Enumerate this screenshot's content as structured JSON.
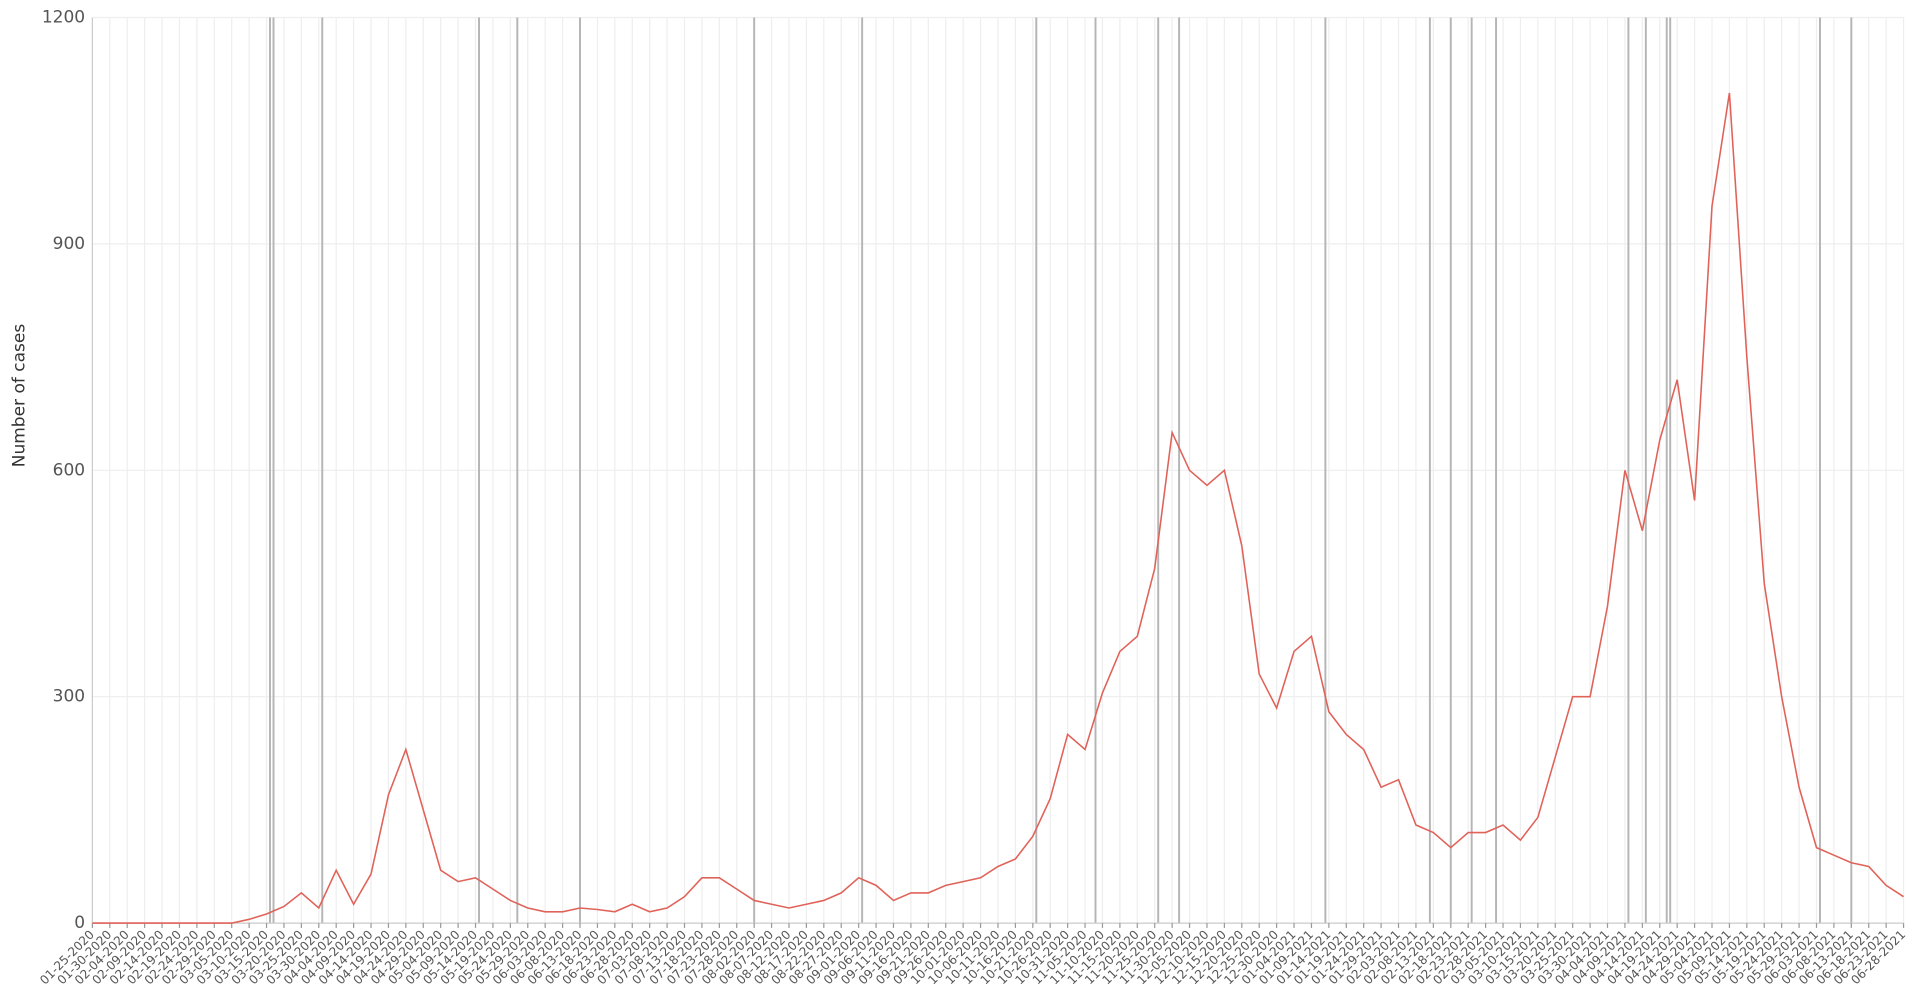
{
  "chart_data": {
    "type": "line",
    "y_label": "Number of cases",
    "categories": [
      "01-25-2020",
      "01-30-2020",
      "02-04-2020",
      "02-09-2020",
      "02-14-2020",
      "02-19-2020",
      "02-24-2020",
      "02-29-2020",
      "03-05-2020",
      "03-10-2020",
      "03-15-2020",
      "03-20-2020",
      "03-25-2020",
      "03-30-2020",
      "04-04-2020",
      "04-09-2020",
      "04-14-2020",
      "04-19-2020",
      "04-24-2020",
      "04-29-2020",
      "05-04-2020",
      "05-09-2020",
      "05-14-2020",
      "05-19-2020",
      "05-24-2020",
      "05-29-2020",
      "06-03-2020",
      "06-08-2020",
      "06-13-2020",
      "06-18-2020",
      "06-23-2020",
      "06-28-2020",
      "07-03-2020",
      "07-08-2020",
      "07-13-2020",
      "07-18-2020",
      "07-23-2020",
      "07-28-2020",
      "08-02-2020",
      "08-07-2020",
      "08-12-2020",
      "08-17-2020",
      "08-22-2020",
      "08-27-2020",
      "09-01-2020",
      "09-06-2020",
      "09-11-2020",
      "09-16-2020",
      "09-21-2020",
      "09-26-2020",
      "10-01-2020",
      "10-06-2020",
      "10-11-2020",
      "10-16-2020",
      "10-21-2020",
      "10-26-2020",
      "10-31-2020",
      "11-05-2020",
      "11-10-2020",
      "11-15-2020",
      "11-20-2020",
      "11-25-2020",
      "11-30-2020",
      "12-05-2020",
      "12-10-2020",
      "12-15-2020",
      "12-20-2020",
      "12-25-2020",
      "12-30-2020",
      "01-04-2021",
      "01-09-2021",
      "01-14-2021",
      "01-19-2021",
      "01-24-2021",
      "01-29-2021",
      "02-03-2021",
      "02-08-2021",
      "02-13-2021",
      "02-18-2021",
      "02-23-2021",
      "02-28-2021",
      "03-05-2021",
      "03-10-2021",
      "03-15-2021",
      "03-20-2021",
      "03-25-2021",
      "03-30-2021",
      "04-04-2021",
      "04-09-2021",
      "04-14-2021",
      "04-19-2021",
      "04-24-2021",
      "04-29-2021",
      "05-04-2021",
      "05-09-2021",
      "05-14-2021",
      "05-19-2021",
      "05-24-2021",
      "05-29-2021",
      "06-03-2021",
      "06-08-2021",
      "06-13-2021",
      "06-18-2021",
      "06-23-2021",
      "06-28-2021"
    ],
    "series": [
      {
        "color": "#e0635a",
        "values": [
          0,
          0,
          0,
          0,
          0,
          0,
          0,
          0,
          0,
          5,
          12,
          22,
          40,
          20,
          70,
          25,
          65,
          170,
          230,
          150,
          70,
          55,
          60,
          45,
          30,
          20,
          15,
          15,
          20,
          18,
          15,
          25,
          15,
          20,
          35,
          60,
          60,
          45,
          30,
          25,
          20,
          25,
          30,
          40,
          60,
          50,
          30,
          40,
          40,
          50,
          55,
          60,
          75,
          85,
          115,
          165,
          250,
          230,
          305,
          360,
          380,
          470,
          650,
          600,
          580,
          600,
          500,
          330,
          285,
          360,
          380,
          280,
          250,
          230,
          180,
          190,
          130,
          120,
          100,
          120,
          120,
          130,
          110,
          140,
          220,
          300,
          300,
          420,
          600,
          520,
          640,
          720,
          560,
          950,
          1100,
          750,
          450,
          300,
          180,
          100,
          90,
          80,
          75,
          50,
          35
        ]
      }
    ],
    "events": [
      "03-16-2020",
      "03-17-2020",
      "03-31-2020",
      "05-15-2020",
      "05-26-2020",
      "06-13-2020",
      "08-02-2020",
      "09-02-2020",
      "10-22-2020",
      "11-08-2020",
      "11-26-2020",
      "12-02-2020",
      "01-13-2021",
      "02-12-2021",
      "02-18-2021",
      "02-24-2021",
      "03-03-2021",
      "04-10-2021",
      "04-15-2021",
      "04-21-2021",
      "04-22-2021",
      "06-04-2021",
      "06-13-2021"
    ],
    "event_color": "#b5b5b5",
    "ylim": [
      0,
      1200
    ],
    "yticks": [
      0,
      300,
      600,
      900,
      1200
    ],
    "grid": true
  }
}
